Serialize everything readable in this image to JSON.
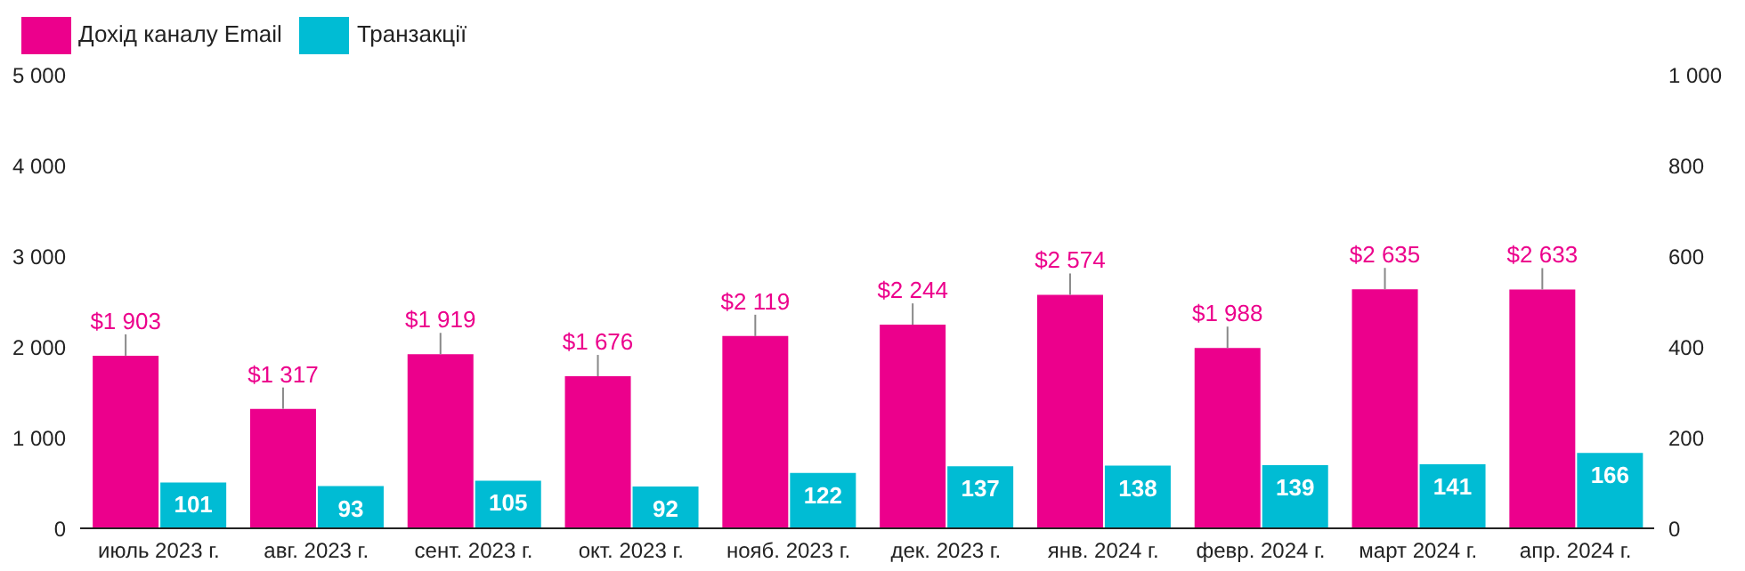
{
  "chart_data": {
    "type": "bar",
    "categories": [
      "июль 2023 г.",
      "авг. 2023 г.",
      "сент. 2023 г.",
      "окт. 2023 г.",
      "нояб. 2023 г.",
      "дек. 2023 г.",
      "янв. 2024 г.",
      "февр. 2024 г.",
      "март 2024 г.",
      "апр. 2024 г."
    ],
    "series": [
      {
        "name": "Дохід каналу Email",
        "color": "#ec008c",
        "values": [
          1903,
          1317,
          1919,
          1676,
          2119,
          2244,
          2574,
          1988,
          2635,
          2633
        ],
        "value_labels": [
          "$1 903",
          "$1 317",
          "$1 919",
          "$1 676",
          "$2 119",
          "$2 244",
          "$2 574",
          "$1 988",
          "$2 635",
          "$2 633"
        ]
      },
      {
        "name": "Транзакції",
        "color": "#00bcd4",
        "axis": "y2",
        "values": [
          101,
          93,
          105,
          92,
          122,
          137,
          138,
          139,
          141,
          166
        ],
        "value_labels": [
          "101",
          "93",
          "105",
          "92",
          "122",
          "137",
          "138",
          "139",
          "141",
          "166"
        ]
      }
    ],
    "ylim": [
      0,
      5000
    ],
    "yticks": [
      0,
      {
        "value": 1000,
        "label": "1 000"
      },
      {
        "value": 2000,
        "label": "2 000"
      },
      {
        "value": 3000,
        "label": "3 000"
      },
      {
        "value": 4000,
        "label": "4 000"
      },
      {
        "value": 5000,
        "label": "5 000"
      }
    ],
    "y2lim": [
      0,
      1000
    ],
    "y2ticks": [
      0,
      200,
      400,
      600,
      800,
      {
        "value": 1000,
        "label": "1 000"
      }
    ],
    "legend": "top left"
  }
}
